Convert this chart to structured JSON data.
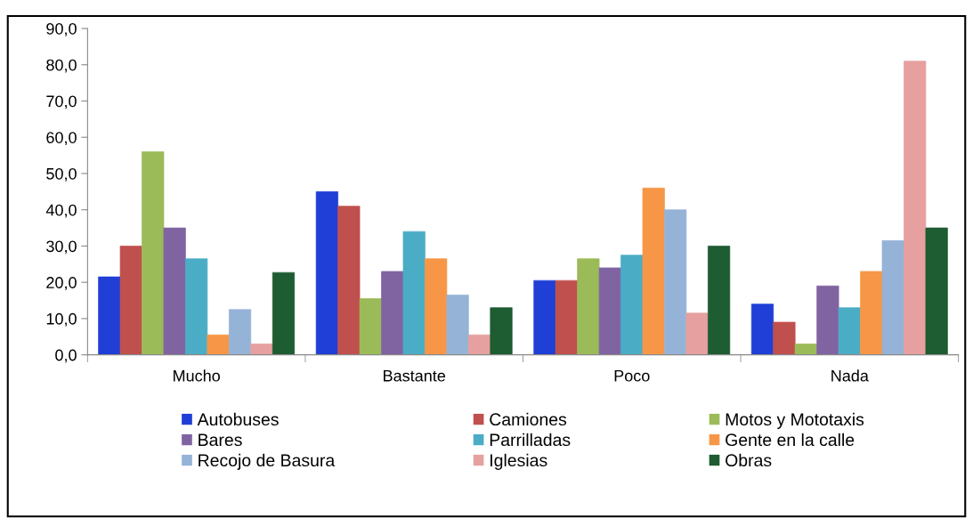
{
  "chart_data": {
    "type": "bar",
    "categories": [
      "Mucho",
      "Bastante",
      "Poco",
      "Nada"
    ],
    "series": [
      {
        "name": "Autobuses",
        "color": "#1f3fd6",
        "values": [
          21.5,
          45,
          20.5,
          14
        ]
      },
      {
        "name": "Camiones",
        "color": "#c0504d",
        "values": [
          30,
          41,
          20.5,
          9
        ]
      },
      {
        "name": "Motos y Mototaxis",
        "color": "#9bbb59",
        "values": [
          56,
          15.5,
          26.5,
          3
        ]
      },
      {
        "name": "Bares",
        "color": "#8064a2",
        "values": [
          35,
          23,
          24,
          19
        ]
      },
      {
        "name": "Parrilladas",
        "color": "#4bacc6",
        "values": [
          26.5,
          34,
          27.5,
          13
        ]
      },
      {
        "name": "Gente en la calle",
        "color": "#f79646",
        "values": [
          5.5,
          26.5,
          46,
          23
        ]
      },
      {
        "name": "Recojo de Basura",
        "color": "#95b3d7",
        "values": [
          12.5,
          16.5,
          40,
          31.5
        ]
      },
      {
        "name": "Iglesias",
        "color": "#e6a0a0",
        "values": [
          3,
          5.5,
          11.5,
          81
        ]
      },
      {
        "name": "Obras",
        "color": "#1e5c32",
        "values": [
          22.7,
          13,
          30,
          35
        ]
      }
    ],
    "ylim": [
      0,
      90
    ],
    "yticks": [
      {
        "value": 0,
        "label": "0,0"
      },
      {
        "value": 10,
        "label": "10,0"
      },
      {
        "value": 20,
        "label": "20,0"
      },
      {
        "value": 30,
        "label": "30,0"
      },
      {
        "value": 40,
        "label": "40,0"
      },
      {
        "value": 50,
        "label": "50,0"
      },
      {
        "value": 60,
        "label": "60,0"
      },
      {
        "value": 70,
        "label": "70,0"
      },
      {
        "value": 80,
        "label": "80,0"
      },
      {
        "value": 90,
        "label": "90,0"
      }
    ],
    "grid": false,
    "legend": "bottom"
  }
}
